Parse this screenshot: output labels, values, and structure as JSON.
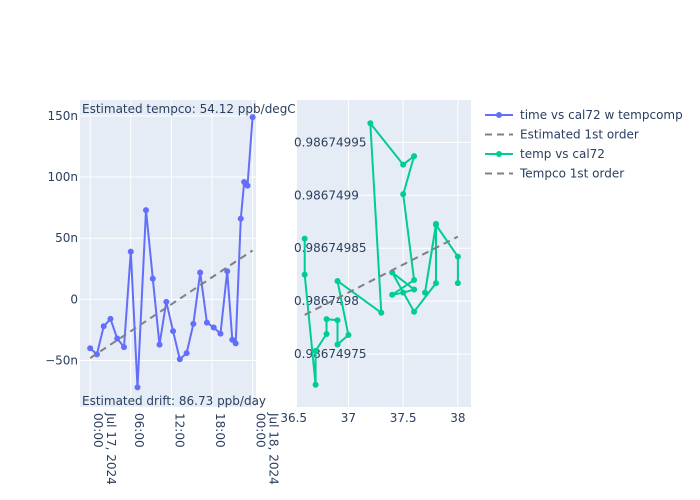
{
  "chart_data": [
    {
      "type": "line",
      "panel": "left",
      "x_axis": {
        "type": "date",
        "range": [
          "2024-07-16T22:30",
          "2024-07-18T00:30"
        ],
        "ticks": [
          {
            "value": "2024-07-17T00:00",
            "label": "00:00\nJul 17, 2024"
          },
          {
            "value": "2024-07-17T06:00",
            "label": "06:00"
          },
          {
            "value": "2024-07-17T12:00",
            "label": "12:00"
          },
          {
            "value": "2024-07-17T18:00",
            "label": "18:00"
          },
          {
            "value": "2024-07-18T00:00",
            "label": "00:00\nJul 18, 2024"
          }
        ]
      },
      "y_axis": {
        "range": [
          -8.8e-08,
          1.63e-07
        ],
        "ticks": [
          {
            "value": -5e-08,
            "label": "−50n"
          },
          {
            "value": 0,
            "label": "0"
          },
          {
            "value": 5e-08,
            "label": "50n"
          },
          {
            "value": 1e-07,
            "label": "100n"
          },
          {
            "value": 1.5e-07,
            "label": "150n"
          }
        ]
      },
      "series": [
        {
          "name": "time vs cal72 w tempcomp",
          "color": "#636efa",
          "mode": "lines+markers",
          "points": [
            [
              "2024-07-17T00:00",
              -4e-08
            ],
            [
              "2024-07-17T01:00",
              -4.5e-08
            ],
            [
              "2024-07-17T02:00",
              -2.2e-08
            ],
            [
              "2024-07-17T03:00",
              -1.6e-08
            ],
            [
              "2024-07-17T04:00",
              -3.2e-08
            ],
            [
              "2024-07-17T05:00",
              -3.9e-08
            ],
            [
              "2024-07-17T06:00",
              3.9e-08
            ],
            [
              "2024-07-17T07:00",
              -7.2e-08
            ],
            [
              "2024-07-17T08:15",
              7.3e-08
            ],
            [
              "2024-07-17T09:15",
              1.7e-08
            ],
            [
              "2024-07-17T10:15",
              -3.7e-08
            ],
            [
              "2024-07-17T11:15",
              -2e-09
            ],
            [
              "2024-07-17T12:15",
              -2.6e-08
            ],
            [
              "2024-07-17T13:15",
              -4.9e-08
            ],
            [
              "2024-07-17T14:15",
              -4.4e-08
            ],
            [
              "2024-07-17T15:15",
              -2e-08
            ],
            [
              "2024-07-17T16:15",
              2.2e-08
            ],
            [
              "2024-07-17T17:15",
              -1.9e-08
            ],
            [
              "2024-07-17T18:15",
              -2.3e-08
            ],
            [
              "2024-07-17T19:15",
              -2.8e-08
            ],
            [
              "2024-07-17T20:15",
              2.3e-08
            ],
            [
              "2024-07-17T21:00",
              -3.3e-08
            ],
            [
              "2024-07-17T21:30",
              -3.6e-08
            ],
            [
              "2024-07-17T22:15",
              6.6e-08
            ],
            [
              "2024-07-17T22:45",
              9.6e-08
            ],
            [
              "2024-07-17T23:15",
              9.3e-08
            ],
            [
              "2024-07-18T00:00",
              1.49e-07
            ]
          ]
        },
        {
          "name": "Estimated 1st order",
          "color": "#808080",
          "mode": "dashed",
          "points": [
            [
              "2024-07-17T00:00",
              -4.8e-08
            ],
            [
              "2024-07-18T00:00",
              4e-08
            ]
          ]
        }
      ],
      "annotations": [
        {
          "text": "Estimated tempco:  54.12 ppb/degC",
          "position": "top-left"
        },
        {
          "text": "Estimated drift:  86.73 ppb/day",
          "position": "bottom-left"
        }
      ]
    },
    {
      "type": "line",
      "panel": "right",
      "x_axis": {
        "range": [
          36.53,
          38.12
        ],
        "ticks": [
          {
            "value": 36.5,
            "label": "36.5"
          },
          {
            "value": 37,
            "label": "37"
          },
          {
            "value": 37.5,
            "label": "37.5"
          },
          {
            "value": 38,
            "label": "38"
          }
        ]
      },
      "y_axis": {
        "range": [
          0.9867497,
          0.98674999
        ],
        "ticks": [
          {
            "value": 0.98674975,
            "label": "0.98674975"
          },
          {
            "value": 0.9867498,
            "label": "0.9867498"
          },
          {
            "value": 0.98674985,
            "label": "0.98674985"
          },
          {
            "value": 0.9867499,
            "label": "0.9867499"
          },
          {
            "value": 0.98674995,
            "label": "0.98674995"
          }
        ]
      },
      "series": [
        {
          "name": "temp vs cal72",
          "color": "#00cc96",
          "mode": "lines+markers",
          "points": [
            [
              36.6,
              0.986749859
            ],
            [
              36.6,
              0.986749825
            ],
            [
              36.7,
              0.986749721
            ],
            [
              36.7,
              0.986749753
            ],
            [
              36.8,
              0.986749769
            ],
            [
              36.8,
              0.986749783
            ],
            [
              36.9,
              0.986749782
            ],
            [
              36.9,
              0.986749759
            ],
            [
              37.0,
              0.986749768
            ],
            [
              36.9,
              0.986749819
            ],
            [
              37.3,
              0.986749789
            ],
            [
              37.2,
              0.986749968
            ],
            [
              37.5,
              0.986749929
            ],
            [
              37.6,
              0.986749937
            ],
            [
              37.5,
              0.986749901
            ],
            [
              37.6,
              0.98674982
            ],
            [
              37.4,
              0.986749806
            ],
            [
              37.5,
              0.986749808
            ],
            [
              37.6,
              0.986749811
            ],
            [
              37.4,
              0.986749827
            ],
            [
              37.6,
              0.98674979
            ],
            [
              37.8,
              0.986749817
            ],
            [
              37.8,
              0.986749873
            ],
            [
              37.7,
              0.986749808
            ],
            [
              37.8,
              0.986749872
            ],
            [
              38.0,
              0.986749842
            ],
            [
              38.0,
              0.986749817
            ]
          ]
        },
        {
          "name": "Tempco 1st order",
          "color": "#808080",
          "mode": "dashed",
          "points": [
            [
              36.6,
              0.986749787
            ],
            [
              38.0,
              0.986749861
            ]
          ]
        }
      ]
    }
  ],
  "legend": {
    "position": "top-right",
    "entries": [
      {
        "name": "time vs cal72 w tempcomp",
        "color": "#636efa",
        "style": "line-marker"
      },
      {
        "name": "Estimated 1st order",
        "color": "#808080",
        "style": "dash"
      },
      {
        "name": "temp vs cal72",
        "color": "#00cc96",
        "style": "line-marker"
      },
      {
        "name": "Tempco 1st order",
        "color": "#808080",
        "style": "dash"
      }
    ]
  },
  "colors": {
    "plot_bg": "#e5ecf6",
    "grid": "#ffffff",
    "text": "#2a3f5f"
  }
}
